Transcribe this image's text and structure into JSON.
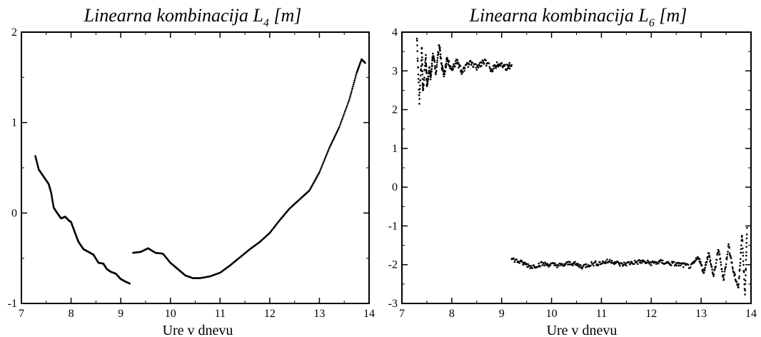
{
  "colors": {
    "background": "#ffffff",
    "axis": "#000000",
    "points": "#000000"
  },
  "chart_data": [
    {
      "type": "scatter",
      "title": "Linearna kombinacija L",
      "title_subscript": "4",
      "title_unit": " [m]",
      "xlabel": "Ure v dnevu",
      "ylabel": "",
      "xlim": [
        7,
        14
      ],
      "ylim": [
        -1,
        2
      ],
      "x_ticks": [
        "7",
        "8",
        "9",
        "10",
        "11",
        "12",
        "13",
        "14"
      ],
      "y_ticks": [
        "-1",
        "0",
        "1",
        "2"
      ],
      "grid": false,
      "series": [
        {
          "description": "first arc",
          "points": [
            [
              7.28,
              0.63
            ],
            [
              7.35,
              0.48
            ],
            [
              7.45,
              0.4
            ],
            [
              7.55,
              0.32
            ],
            [
              7.6,
              0.22
            ],
            [
              7.65,
              0.06
            ],
            [
              7.72,
              0.0
            ],
            [
              7.8,
              -0.06
            ],
            [
              7.88,
              -0.04
            ],
            [
              7.95,
              -0.08
            ],
            [
              8.0,
              -0.1
            ],
            [
              8.08,
              -0.22
            ],
            [
              8.15,
              -0.32
            ],
            [
              8.25,
              -0.4
            ],
            [
              8.35,
              -0.43
            ],
            [
              8.45,
              -0.46
            ],
            [
              8.55,
              -0.55
            ],
            [
              8.65,
              -0.56
            ],
            [
              8.72,
              -0.62
            ],
            [
              8.8,
              -0.65
            ],
            [
              8.9,
              -0.67
            ],
            [
              9.0,
              -0.73
            ],
            [
              9.1,
              -0.76
            ],
            [
              9.18,
              -0.78
            ]
          ]
        },
        {
          "description": "second arc",
          "points": [
            [
              9.25,
              -0.44
            ],
            [
              9.4,
              -0.43
            ],
            [
              9.55,
              -0.39
            ],
            [
              9.7,
              -0.44
            ],
            [
              9.85,
              -0.45
            ],
            [
              10.0,
              -0.55
            ],
            [
              10.15,
              -0.62
            ],
            [
              10.3,
              -0.69
            ],
            [
              10.45,
              -0.72
            ],
            [
              10.6,
              -0.72
            ],
            [
              10.8,
              -0.7
            ],
            [
              11.0,
              -0.66
            ],
            [
              11.2,
              -0.58
            ],
            [
              11.4,
              -0.49
            ],
            [
              11.6,
              -0.4
            ],
            [
              11.8,
              -0.32
            ],
            [
              12.0,
              -0.22
            ],
            [
              12.2,
              -0.08
            ],
            [
              12.4,
              0.05
            ],
            [
              12.6,
              0.15
            ],
            [
              12.8,
              0.25
            ],
            [
              13.0,
              0.45
            ],
            [
              13.2,
              0.72
            ],
            [
              13.4,
              0.95
            ],
            [
              13.6,
              1.25
            ],
            [
              13.75,
              1.55
            ],
            [
              13.85,
              1.7
            ],
            [
              13.92,
              1.66
            ]
          ]
        }
      ]
    },
    {
      "type": "scatter",
      "title": "Linearna kombinacija L",
      "title_subscript": "6",
      "title_unit": " [m]",
      "xlabel": "Ure v dnevu",
      "ylabel": "",
      "xlim": [
        7,
        14
      ],
      "ylim": [
        -3,
        4
      ],
      "x_ticks": [
        "7",
        "8",
        "9",
        "10",
        "11",
        "12",
        "13",
        "14"
      ],
      "y_ticks": [
        "-3",
        "-2",
        "-1",
        "0",
        "1",
        "2",
        "3",
        "4"
      ],
      "grid": false,
      "series": [
        {
          "description": "first arc",
          "points": [
            [
              7.3,
              3.85
            ],
            [
              7.35,
              2.2
            ],
            [
              7.4,
              3.6
            ],
            [
              7.42,
              2.45
            ],
            [
              7.48,
              3.35
            ],
            [
              7.5,
              2.6
            ],
            [
              7.55,
              3.05
            ],
            [
              7.58,
              2.8
            ],
            [
              7.62,
              3.45
            ],
            [
              7.68,
              2.95
            ],
            [
              7.75,
              3.7
            ],
            [
              7.8,
              3.1
            ],
            [
              7.85,
              2.9
            ],
            [
              7.9,
              3.3
            ],
            [
              8.0,
              3.05
            ],
            [
              8.1,
              3.25
            ],
            [
              8.2,
              3.0
            ],
            [
              8.35,
              3.2
            ],
            [
              8.5,
              3.1
            ],
            [
              8.65,
              3.25
            ],
            [
              8.8,
              3.05
            ],
            [
              8.95,
              3.2
            ],
            [
              9.1,
              3.1
            ],
            [
              9.2,
              3.15
            ]
          ],
          "spread": 0.08
        },
        {
          "description": "second arc",
          "points": [
            [
              9.2,
              -1.85
            ],
            [
              9.4,
              -1.95
            ],
            [
              9.6,
              -2.05
            ],
            [
              9.8,
              -1.98
            ],
            [
              10.0,
              -2.0
            ],
            [
              10.2,
              -2.02
            ],
            [
              10.4,
              -1.95
            ],
            [
              10.6,
              -2.05
            ],
            [
              10.8,
              -1.98
            ],
            [
              11.0,
              -1.95
            ],
            [
              11.2,
              -1.9
            ],
            [
              11.4,
              -2.0
            ],
            [
              11.6,
              -1.95
            ],
            [
              11.8,
              -1.92
            ],
            [
              12.0,
              -1.96
            ],
            [
              12.2,
              -1.93
            ],
            [
              12.4,
              -1.97
            ],
            [
              12.6,
              -2.0
            ],
            [
              12.8,
              -2.05
            ],
            [
              12.95,
              -1.8
            ],
            [
              13.05,
              -2.2
            ],
            [
              13.15,
              -1.7
            ],
            [
              13.25,
              -2.3
            ],
            [
              13.35,
              -1.6
            ],
            [
              13.45,
              -2.4
            ],
            [
              13.55,
              -1.5
            ],
            [
              13.65,
              -2.2
            ],
            [
              13.75,
              -2.6
            ],
            [
              13.82,
              -1.2
            ],
            [
              13.88,
              -2.8
            ],
            [
              13.92,
              -1.05
            ]
          ],
          "spread": 0.06
        }
      ]
    }
  ]
}
